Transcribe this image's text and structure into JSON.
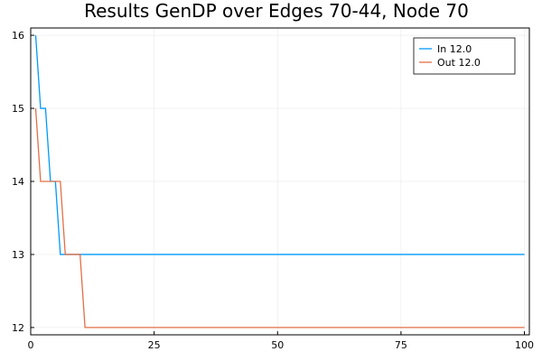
{
  "chart_data": {
    "type": "line",
    "title": "Results GenDP over Edges 70-44,  Node 70",
    "xlabel": "",
    "ylabel": "",
    "xlim": [
      0,
      101
    ],
    "ylim": [
      11.9,
      16.1
    ],
    "xticks": [
      0,
      25,
      50,
      75,
      100
    ],
    "yticks": [
      12,
      13,
      14,
      15,
      16
    ],
    "grid": true,
    "legend_position": "top-right",
    "step": true,
    "series": [
      {
        "name": "In 12.0",
        "color": "#009AFA",
        "x": [
          1,
          2,
          3,
          4,
          5,
          6,
          100
        ],
        "y": [
          16,
          15,
          15,
          14,
          14,
          13,
          13
        ]
      },
      {
        "name": "Out 12.0",
        "color": "#E26F46",
        "x": [
          1,
          2,
          6,
          7,
          10,
          11,
          100
        ],
        "y": [
          15,
          14,
          14,
          13,
          13,
          12,
          12
        ]
      }
    ]
  }
}
